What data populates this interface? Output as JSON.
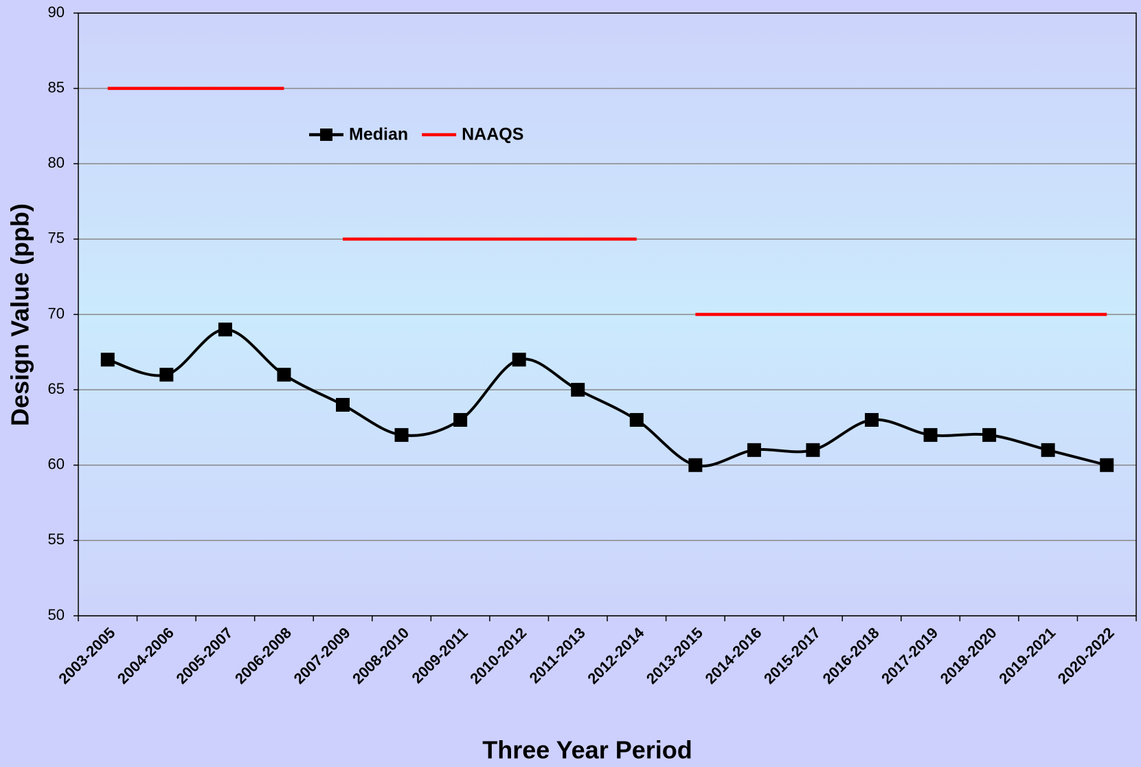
{
  "chart_data": {
    "type": "line",
    "x_label": "Three Year Period",
    "y_label": "Design Value (ppb)",
    "categories": [
      "2003-2005",
      "2004-2006",
      "2005-2007",
      "2006-2008",
      "2007-2009",
      "2008-2010",
      "2009-2011",
      "2010-2012",
      "2011-2013",
      "2012-2014",
      "2013-2015",
      "2014-2016",
      "2015-2017",
      "2016-2018",
      "2017-2019",
      "2018-2020",
      "2019-2021",
      "2020-2022"
    ],
    "series": [
      {
        "name": "Median",
        "color": "#000000",
        "smooth": true,
        "marker": "square",
        "values": [
          67,
          66,
          69,
          66,
          64,
          62,
          63,
          67,
          65,
          63,
          60,
          61,
          61,
          63,
          62,
          62,
          61,
          60
        ]
      },
      {
        "name": "NAAQS",
        "color": "#ff0000",
        "step_segments": true,
        "values": [
          85,
          85,
          85,
          85,
          75,
          75,
          75,
          75,
          75,
          75,
          70,
          70,
          70,
          70,
          70,
          70,
          70,
          70
        ]
      }
    ],
    "ylim": [
      50,
      90
    ],
    "yticks": [
      50,
      55,
      60,
      65,
      70,
      75,
      80,
      85,
      90
    ],
    "grid": true
  }
}
